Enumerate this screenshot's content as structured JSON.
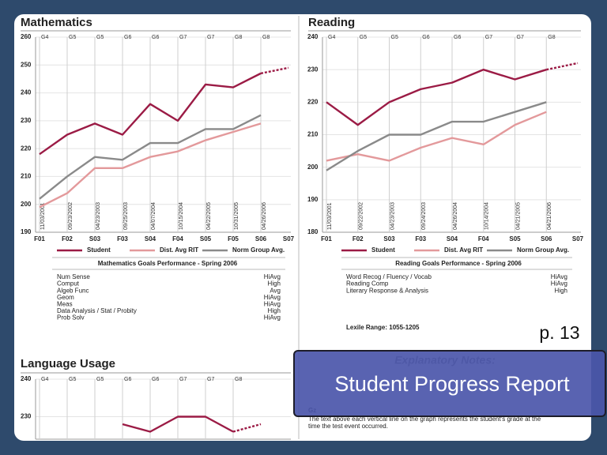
{
  "page_label": "p. 13",
  "caption": "Student Progress Report",
  "chart_data": [
    {
      "type": "line",
      "title": "Mathematics",
      "ylim": [
        190,
        260
      ],
      "yticks": [
        190,
        200,
        210,
        220,
        230,
        240,
        250,
        260
      ],
      "categories": [
        "F01",
        "F02",
        "S03",
        "F03",
        "S04",
        "F04",
        "S05",
        "F05",
        "S06",
        "S07"
      ],
      "grades": [
        "G4",
        "G5",
        "G5",
        "G6",
        "G6",
        "G7",
        "G7",
        "G8",
        "G8",
        null
      ],
      "dates": [
        "11/03/2001",
        "09/23/2002",
        "04/23/2003",
        "09/25/2003",
        "04/07/2004",
        "10/15/2004",
        "04/22/2005",
        "10/31/2005",
        "04/26/2006",
        null
      ],
      "series": [
        {
          "name": "Student",
          "color": "#9b1b45",
          "projection": true,
          "values": [
            218,
            225,
            229,
            225,
            236,
            230,
            243,
            242,
            247,
            249
          ]
        },
        {
          "name": "Dist. Avg RIT",
          "color": "#e3999b",
          "values": [
            199,
            204,
            213,
            213,
            217,
            219,
            223,
            226,
            229,
            null
          ]
        },
        {
          "name": "Norm Group Avg.",
          "color": "#8a8a8a",
          "values": [
            202,
            210,
            217,
            216,
            222,
            222,
            227,
            227,
            232,
            null
          ]
        }
      ]
    },
    {
      "type": "line",
      "title": "Reading",
      "ylim": [
        180,
        240
      ],
      "yticks": [
        180,
        190,
        200,
        210,
        220,
        230,
        240
      ],
      "categories": [
        "F01",
        "F02",
        "S03",
        "F03",
        "S04",
        "F04",
        "S05",
        "S06",
        "S07"
      ],
      "grades": [
        "G4",
        "G5",
        "G5",
        "G6",
        "G6",
        "G7",
        "G7",
        "G8",
        null
      ],
      "dates": [
        "11/03/2001",
        "09/22/2002",
        "04/23/2003",
        "09/24/2003",
        "04/26/2004",
        "10/14/2004",
        "04/21/2005",
        "04/21/2006",
        null
      ],
      "series": [
        {
          "name": "Student",
          "color": "#9b1b45",
          "projection": true,
          "values": [
            220,
            213,
            220,
            224,
            226,
            230,
            227,
            230,
            232
          ]
        },
        {
          "name": "Dist. Avg RIT",
          "color": "#e3999b",
          "values": [
            202,
            204,
            202,
            206,
            209,
            207,
            213,
            217,
            null
          ]
        },
        {
          "name": "Norm Group Avg.",
          "color": "#8a8a8a",
          "values": [
            199,
            205,
            210,
            210,
            214,
            214,
            217,
            220,
            null
          ]
        }
      ]
    },
    {
      "type": "line",
      "title": "Language Usage",
      "ylim": [
        224,
        240
      ],
      "yticks": [
        230,
        240
      ],
      "grades": [
        "G4",
        "G5",
        "G5",
        "G6",
        "G6",
        "G7",
        "G7",
        "G8",
        null
      ],
      "series": [
        {
          "name": "Student",
          "color": "#9b1b45",
          "projection": true,
          "values": [
            null,
            null,
            null,
            228,
            226,
            230,
            230,
            226,
            228
          ]
        }
      ]
    }
  ],
  "math_goals": {
    "title": "Mathematics Goals Performance - Spring 2006",
    "rows": [
      [
        "Num Sense",
        "HiAvg"
      ],
      [
        "Comput",
        "High"
      ],
      [
        "Algeb Func",
        "Avg"
      ],
      [
        "Geom",
        "HiAvg"
      ],
      [
        "Meas",
        "HiAvg"
      ],
      [
        "Data Analysis / Stat / Probity",
        "High"
      ],
      [
        "Prob Solv",
        "HiAvg"
      ]
    ]
  },
  "reading_goals": {
    "title": "Reading Goals Performance - Spring 2006",
    "rows": [
      [
        "Word Recog / Fluency / Vocab",
        "HiAvg"
      ],
      [
        "Reading Comp",
        "HiAvg"
      ],
      [
        "Literary Response & Analysis",
        "High"
      ]
    ],
    "lexile": "Lexile Range: 1055-1205"
  },
  "notes": {
    "title": "Explanatory Notes:",
    "marker": "Gz",
    "text": [
      "The text above each vertical line on the graph represents the student's grade at the",
      "time the test event occurred."
    ]
  }
}
